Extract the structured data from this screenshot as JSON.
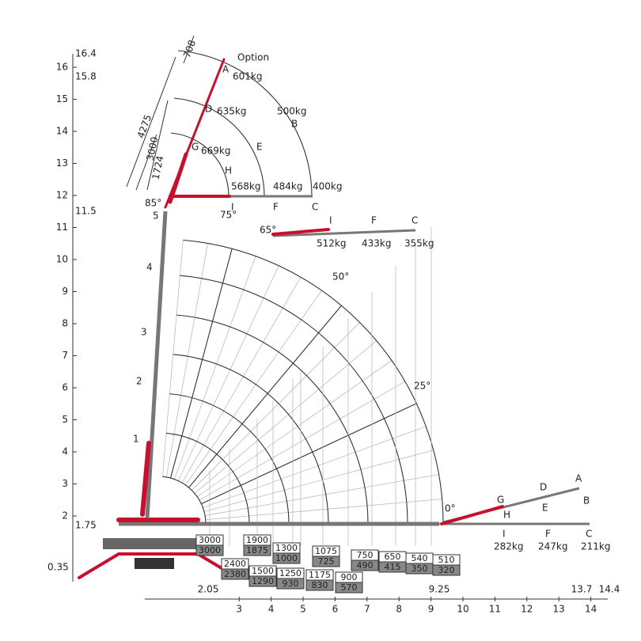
{
  "y_axis": {
    "ticks": [
      "2",
      "3",
      "4",
      "5",
      "6",
      "7",
      "8",
      "9",
      "10",
      "11",
      "12",
      "13",
      "14",
      "15",
      "16"
    ],
    "special": [
      "16.4",
      "15.8",
      "11.5",
      "1.75",
      "0.35"
    ]
  },
  "x_axis": {
    "ticks": [
      "3",
      "4",
      "5",
      "6",
      "7",
      "8",
      "9",
      "10",
      "11",
      "12",
      "13",
      "14"
    ],
    "special": [
      "2.05",
      "9.25",
      "13.7",
      "14.4"
    ]
  },
  "boom_sections": [
    "1",
    "2",
    "3",
    "4",
    "5"
  ],
  "angles": [
    "85°",
    "75°",
    "65°",
    "50°",
    "25°",
    "0°"
  ],
  "dimensions": [
    "708",
    "4275",
    "3000",
    "1724"
  ],
  "option": "Option",
  "jib_85": {
    "A": "A",
    "A_load": "601kg",
    "D": "D",
    "D_load": "635kg",
    "G": "G",
    "G_load": "669kg",
    "H": "H",
    "H_load": "568kg",
    "E": "E",
    "E_load": "484kg",
    "B": "B",
    "B_load": "500kg",
    "I": "I",
    "F": "F",
    "C": "C",
    "C_load": "400kg"
  },
  "jib_65": {
    "I": "I",
    "I_load": "512kg",
    "F": "F",
    "F_load": "433kg",
    "C": "C",
    "C_load": "355kg"
  },
  "jib_0": {
    "A": "A",
    "D": "D",
    "B": "B",
    "G": "G",
    "E": "E",
    "H": "H",
    "I": "I",
    "I_load": "282kg",
    "F": "F",
    "F_load": "247kg",
    "C": "C",
    "C_load": "211kg"
  },
  "load_table": [
    {
      "top": "3000",
      "bottom": "3000"
    },
    {
      "top": "2400",
      "bottom": "2380"
    },
    {
      "top": "1900",
      "bottom": "1875"
    },
    {
      "top": "1500",
      "bottom": "1290"
    },
    {
      "top": "1300",
      "bottom": "1000"
    },
    {
      "top": "1250",
      "bottom": "930"
    },
    {
      "top": "1075",
      "bottom": "725"
    },
    {
      "top": "1175",
      "bottom": "830"
    },
    {
      "top": "900",
      "bottom": "570"
    },
    {
      "top": "750",
      "bottom": "490"
    },
    {
      "top": "650",
      "bottom": "415"
    },
    {
      "top": "540",
      "bottom": "350"
    },
    {
      "top": "510",
      "bottom": "320"
    }
  ]
}
